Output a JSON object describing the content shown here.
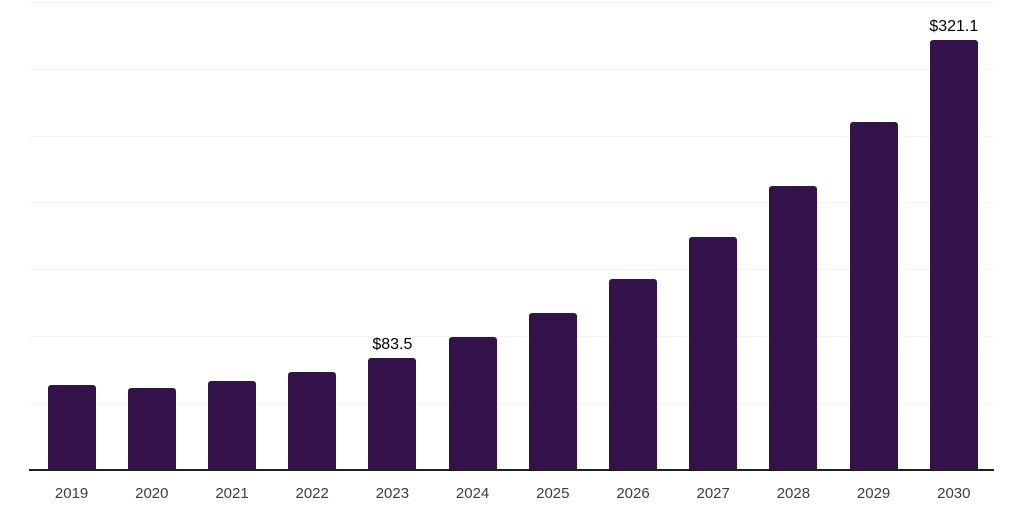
{
  "chart_data": {
    "type": "bar",
    "title": "",
    "xlabel": "",
    "ylabel": "",
    "categories": [
      "2019",
      "2020",
      "2021",
      "2022",
      "2023",
      "2024",
      "2025",
      "2026",
      "2027",
      "2028",
      "2029",
      "2030"
    ],
    "values": [
      63.2,
      61.0,
      66.8,
      73.2,
      83.5,
      99.2,
      117.6,
      142.5,
      173.9,
      212.3,
      259.9,
      321.1
    ],
    "bar_labels": [
      "",
      "",
      "",
      "",
      "$83.5",
      "",
      "",
      "",
      "",
      "",
      "",
      "$321.1"
    ],
    "ylim": [
      0,
      351
    ],
    "gridline_step": 50,
    "gridline_max": 350,
    "grid_visible": true,
    "y_axis_labels_visible": false,
    "legend_position": "none",
    "colors": {
      "bar": "#34134A",
      "grid": "#F4F4F4",
      "axis": "#1F1F1F",
      "value_label": "#000000",
      "tick_label": "#3D3D3D",
      "background": "#FFFFFF"
    }
  }
}
